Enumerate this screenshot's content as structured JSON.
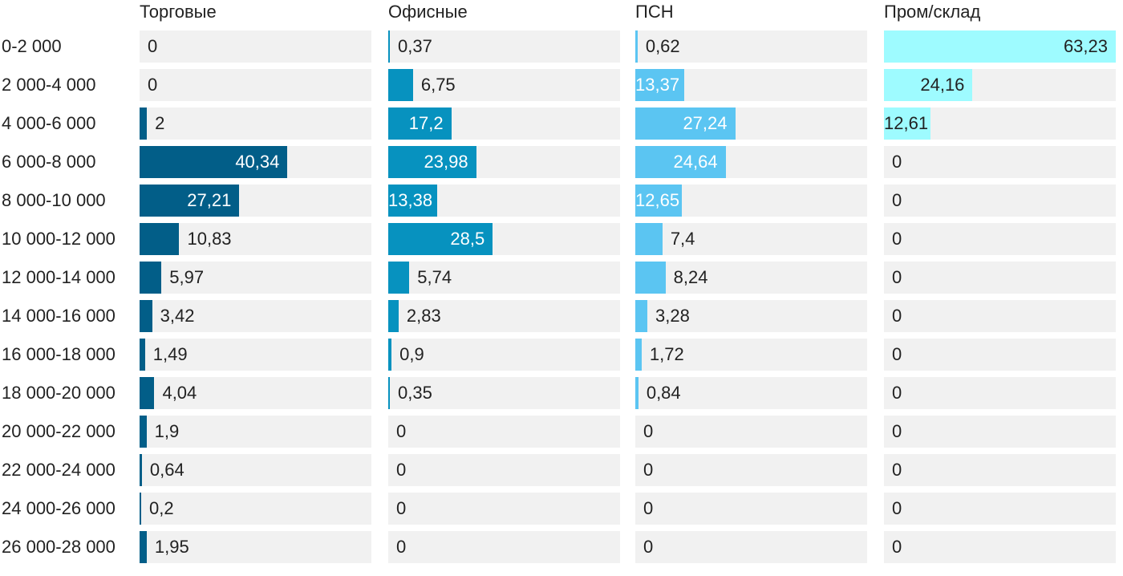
{
  "chart_data": {
    "type": "bar",
    "orientation": "horizontal",
    "layout": "small-multiples",
    "categories": [
      "0-2 000",
      "2 000-4 000",
      "4 000-6 000",
      "6 000-8 000",
      "8 000-10 000",
      "10 000-12 000",
      "12 000-14 000",
      "14 000-16 000",
      "16 000-18 000",
      "18 000-20 000",
      "20 000-22 000",
      "22 000-24 000",
      "24 000-26 000",
      "26 000-28 000"
    ],
    "xlim": [
      0,
      63.23
    ],
    "series": [
      {
        "name": "Торговые",
        "color": "#025e88",
        "values": [
          0,
          0,
          2,
          40.34,
          27.21,
          10.83,
          5.97,
          3.42,
          1.49,
          4.04,
          1.9,
          0.64,
          0.2,
          1.95
        ],
        "labels": [
          "0",
          "0",
          "2",
          "40,34",
          "27,21",
          "10,83",
          "5,97",
          "3,42",
          "1,49",
          "4,04",
          "1,9",
          "0,64",
          "0,2",
          "1,95"
        ]
      },
      {
        "name": "Офисные",
        "color": "#0792bf",
        "values": [
          0.37,
          6.75,
          17.2,
          23.98,
          13.38,
          28.5,
          5.74,
          2.83,
          0.9,
          0.35,
          0,
          0,
          0,
          0
        ],
        "labels": [
          "0,37",
          "6,75",
          "17,2",
          "23,98",
          "13,38",
          "28,5",
          "5,74",
          "2,83",
          "0,9",
          "0,35",
          "0",
          "0",
          "0",
          "0"
        ]
      },
      {
        "name": "ПСН",
        "color": "#5bc5f2",
        "values": [
          0.62,
          13.37,
          27.24,
          24.64,
          12.65,
          7.4,
          8.24,
          3.28,
          1.72,
          0.84,
          0,
          0,
          0,
          0
        ],
        "labels": [
          "0,62",
          "13,37",
          "27,24",
          "24,64",
          "12,65",
          "7,4",
          "8,24",
          "3,28",
          "1,72",
          "0,84",
          "0",
          "0",
          "0",
          "0"
        ]
      },
      {
        "name": "Пром/склад",
        "color": "#9efbff",
        "values": [
          63.23,
          24.16,
          12.61,
          0,
          0,
          0,
          0,
          0,
          0,
          0,
          0,
          0,
          0,
          0
        ],
        "labels": [
          "63,23",
          "24,16",
          "12,61",
          "0",
          "0",
          "0",
          "0",
          "0",
          "0",
          "0",
          "0",
          "0",
          "0",
          "0"
        ]
      }
    ]
  }
}
